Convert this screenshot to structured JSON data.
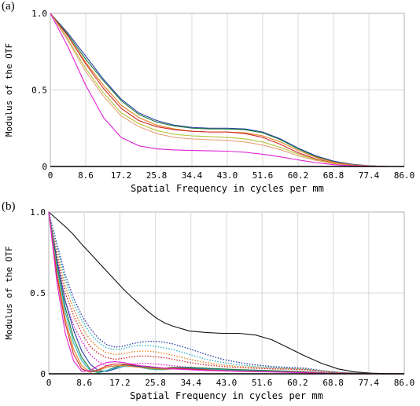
{
  "panels": [
    {
      "label": "(a)"
    },
    {
      "label": "(b)"
    }
  ],
  "chart_data": [
    {
      "type": "line",
      "title": "",
      "xlabel": "Spatial Frequency in cycles per mm",
      "ylabel": "Modulus of the OTF",
      "xlim": [
        0,
        86.0
      ],
      "ylim": [
        0,
        1.0
      ],
      "xticks": [
        "0",
        "8.6",
        "17.2",
        "25.8",
        "34.4",
        "43.0",
        "51.6",
        "60.2",
        "68.8",
        "77.4",
        "86.0"
      ],
      "yticks": [
        "0",
        "0.5",
        "1.0"
      ],
      "grid": true,
      "x": [
        0,
        4.3,
        8.6,
        12.9,
        17.2,
        21.5,
        25.8,
        30.1,
        34.4,
        38.7,
        43.0,
        47.3,
        51.6,
        55.9,
        60.2,
        64.5,
        68.8,
        73.1,
        77.4,
        81.7,
        86.0
      ],
      "series": [
        {
          "color": "#2b3fa8",
          "style": "solid",
          "values": [
            1.0,
            0.87,
            0.72,
            0.57,
            0.44,
            0.35,
            0.3,
            0.27,
            0.255,
            0.25,
            0.25,
            0.245,
            0.225,
            0.18,
            0.12,
            0.07,
            0.035,
            0.015,
            0.005,
            0.0,
            0.0
          ]
        },
        {
          "color": "#1e7b3a",
          "style": "solid",
          "values": [
            1.0,
            0.86,
            0.7,
            0.56,
            0.43,
            0.34,
            0.29,
            0.265,
            0.25,
            0.245,
            0.245,
            0.24,
            0.22,
            0.175,
            0.115,
            0.065,
            0.03,
            0.012,
            0.004,
            0.0,
            0.0
          ]
        },
        {
          "color": "#e0821f",
          "style": "solid",
          "values": [
            1.0,
            0.85,
            0.68,
            0.53,
            0.4,
            0.32,
            0.27,
            0.245,
            0.23,
            0.225,
            0.225,
            0.22,
            0.2,
            0.16,
            0.105,
            0.06,
            0.028,
            0.011,
            0.004,
            0.0,
            0.0
          ]
        },
        {
          "color": "#d12a2a",
          "style": "solid",
          "values": [
            1.0,
            0.85,
            0.67,
            0.51,
            0.38,
            0.3,
            0.26,
            0.24,
            0.23,
            0.225,
            0.225,
            0.215,
            0.19,
            0.145,
            0.09,
            0.05,
            0.022,
            0.008,
            0.003,
            0.0,
            0.0
          ]
        },
        {
          "color": "#b5c23a",
          "style": "solid",
          "values": [
            1.0,
            0.83,
            0.64,
            0.48,
            0.35,
            0.28,
            0.235,
            0.21,
            0.2,
            0.195,
            0.19,
            0.18,
            0.16,
            0.125,
            0.08,
            0.045,
            0.02,
            0.007,
            0.002,
            0.0,
            0.0
          ]
        },
        {
          "color": "#e8a27c",
          "style": "solid",
          "values": [
            1.0,
            0.82,
            0.62,
            0.46,
            0.33,
            0.26,
            0.215,
            0.19,
            0.18,
            0.175,
            0.17,
            0.16,
            0.14,
            0.11,
            0.07,
            0.04,
            0.018,
            0.006,
            0.002,
            0.0,
            0.0
          ]
        },
        {
          "color": "#e020d6",
          "style": "solid",
          "values": [
            1.0,
            0.78,
            0.53,
            0.32,
            0.19,
            0.135,
            0.115,
            0.108,
            0.105,
            0.102,
            0.1,
            0.093,
            0.08,
            0.063,
            0.043,
            0.025,
            0.012,
            0.005,
            0.002,
            0.0,
            0.0
          ]
        }
      ]
    },
    {
      "type": "line",
      "title": "",
      "xlabel": "Spatial Frequency in cycles per mm",
      "ylabel": "Modulus of the OTF",
      "xlim": [
        0,
        86.0
      ],
      "ylim": [
        0,
        1.0
      ],
      "xticks": [
        "0",
        "8.6",
        "17.2",
        "25.8",
        "34.4",
        "43.0",
        "51.6",
        "60.2",
        "68.8",
        "77.4",
        "86.0"
      ],
      "yticks": [
        "0",
        "0.5",
        "1.0"
      ],
      "grid": true,
      "x": [
        0,
        2,
        4,
        6,
        8,
        10,
        12,
        14,
        16,
        18,
        20,
        22,
        24,
        26,
        28,
        30,
        34,
        38,
        42,
        46,
        50,
        54,
        58,
        62,
        66,
        70,
        74,
        78,
        82,
        86
      ],
      "series": [
        {
          "color": "#111111",
          "style": "solid",
          "values": [
            1.0,
            0.955,
            0.91,
            0.86,
            0.8,
            0.745,
            0.69,
            0.635,
            0.58,
            0.525,
            0.475,
            0.43,
            0.385,
            0.345,
            0.315,
            0.295,
            0.265,
            0.255,
            0.25,
            0.25,
            0.24,
            0.21,
            0.16,
            0.11,
            0.065,
            0.03,
            0.012,
            0.004,
            0.001,
            0.0
          ]
        },
        {
          "color": "#2b3fa8",
          "style": "dotted",
          "values": [
            1.0,
            0.8,
            0.61,
            0.47,
            0.36,
            0.28,
            0.22,
            0.18,
            0.165,
            0.17,
            0.185,
            0.195,
            0.2,
            0.2,
            0.195,
            0.185,
            0.155,
            0.12,
            0.09,
            0.07,
            0.055,
            0.045,
            0.04,
            0.035,
            0.02,
            0.01,
            0.005,
            0.002,
            0.0,
            0.0
          ]
        },
        {
          "color": "#2fb8c8",
          "style": "dotted",
          "values": [
            1.0,
            0.78,
            0.58,
            0.44,
            0.33,
            0.25,
            0.195,
            0.16,
            0.15,
            0.155,
            0.17,
            0.175,
            0.175,
            0.17,
            0.16,
            0.15,
            0.12,
            0.09,
            0.07,
            0.055,
            0.045,
            0.038,
            0.034,
            0.03,
            0.018,
            0.009,
            0.004,
            0.001,
            0.0,
            0.0
          ]
        },
        {
          "color": "#e0821f",
          "style": "dotted",
          "values": [
            1.0,
            0.75,
            0.54,
            0.4,
            0.29,
            0.21,
            0.16,
            0.13,
            0.12,
            0.125,
            0.135,
            0.14,
            0.14,
            0.135,
            0.125,
            0.115,
            0.09,
            0.07,
            0.055,
            0.045,
            0.04,
            0.035,
            0.032,
            0.028,
            0.017,
            0.008,
            0.003,
            0.001,
            0.0,
            0.0
          ]
        },
        {
          "color": "#d12a2a",
          "style": "dotted",
          "values": [
            1.0,
            0.72,
            0.5,
            0.36,
            0.25,
            0.17,
            0.125,
            0.1,
            0.09,
            0.095,
            0.105,
            0.11,
            0.11,
            0.105,
            0.1,
            0.09,
            0.07,
            0.055,
            0.045,
            0.038,
            0.034,
            0.03,
            0.028,
            0.025,
            0.015,
            0.007,
            0.003,
            0.001,
            0.0,
            0.0
          ]
        },
        {
          "color": "#e020d6",
          "style": "dotted",
          "values": [
            1.0,
            0.68,
            0.45,
            0.3,
            0.2,
            0.12,
            0.075,
            0.05,
            0.045,
            0.05,
            0.06,
            0.065,
            0.065,
            0.06,
            0.055,
            0.05,
            0.04,
            0.03,
            0.025,
            0.022,
            0.02,
            0.018,
            0.016,
            0.014,
            0.008,
            0.004,
            0.001,
            0.0,
            0.0,
            0.0
          ]
        },
        {
          "color": "#2b3fa8",
          "style": "solid",
          "values": [
            1.0,
            0.7,
            0.45,
            0.27,
            0.14,
            0.06,
            0.02,
            0.015,
            0.03,
            0.045,
            0.05,
            0.045,
            0.035,
            0.03,
            0.03,
            0.035,
            0.035,
            0.03,
            0.025,
            0.022,
            0.02,
            0.018,
            0.015,
            0.01,
            0.005,
            0.002,
            0.0,
            0.0,
            0.0,
            0.0
          ]
        },
        {
          "color": "#1e7b3a",
          "style": "solid",
          "values": [
            1.0,
            0.67,
            0.41,
            0.22,
            0.1,
            0.03,
            0.01,
            0.02,
            0.04,
            0.055,
            0.055,
            0.05,
            0.04,
            0.035,
            0.035,
            0.04,
            0.04,
            0.035,
            0.03,
            0.026,
            0.023,
            0.02,
            0.017,
            0.012,
            0.006,
            0.002,
            0.0,
            0.0,
            0.0,
            0.0
          ]
        },
        {
          "color": "#2fb8c8",
          "style": "solid",
          "values": [
            1.0,
            0.65,
            0.38,
            0.19,
            0.08,
            0.02,
            0.005,
            0.02,
            0.035,
            0.045,
            0.045,
            0.04,
            0.03,
            0.025,
            0.025,
            0.03,
            0.03,
            0.028,
            0.024,
            0.02,
            0.018,
            0.016,
            0.013,
            0.009,
            0.004,
            0.001,
            0.0,
            0.0,
            0.0,
            0.0
          ]
        },
        {
          "color": "#e0821f",
          "style": "solid",
          "values": [
            1.0,
            0.62,
            0.34,
            0.15,
            0.05,
            0.01,
            0.02,
            0.04,
            0.05,
            0.05,
            0.045,
            0.04,
            0.035,
            0.03,
            0.028,
            0.03,
            0.028,
            0.024,
            0.02,
            0.017,
            0.015,
            0.013,
            0.011,
            0.008,
            0.004,
            0.001,
            0.0,
            0.0,
            0.0,
            0.0
          ]
        },
        {
          "color": "#d12a2a",
          "style": "solid",
          "values": [
            1.0,
            0.6,
            0.31,
            0.12,
            0.03,
            0.01,
            0.025,
            0.05,
            0.06,
            0.06,
            0.055,
            0.05,
            0.045,
            0.04,
            0.035,
            0.035,
            0.03,
            0.025,
            0.02,
            0.017,
            0.015,
            0.013,
            0.011,
            0.008,
            0.004,
            0.001,
            0.0,
            0.0,
            0.0,
            0.0
          ]
        },
        {
          "color": "#e020d6",
          "style": "solid",
          "values": [
            1.0,
            0.56,
            0.25,
            0.08,
            0.015,
            0.02,
            0.05,
            0.07,
            0.075,
            0.07,
            0.06,
            0.05,
            0.045,
            0.04,
            0.035,
            0.03,
            0.025,
            0.02,
            0.018,
            0.015,
            0.013,
            0.011,
            0.009,
            0.006,
            0.003,
            0.001,
            0.0,
            0.0,
            0.0,
            0.0
          ]
        }
      ]
    }
  ]
}
